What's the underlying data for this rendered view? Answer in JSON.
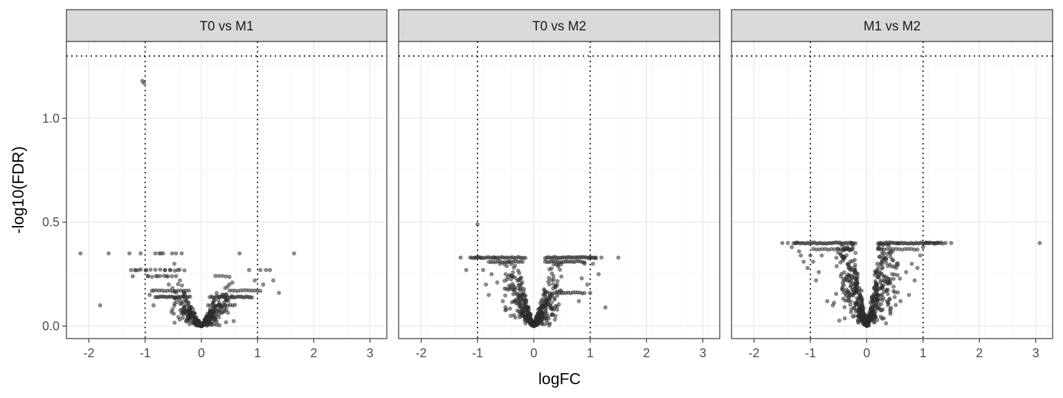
{
  "chart_data": {
    "type": "scatter",
    "xlabel": "logFC",
    "ylabel": "-log10(FDR)",
    "xlim": [
      -2.4,
      3.3
    ],
    "ylim": [
      -0.06,
      1.37
    ],
    "x_ticks": [
      -2,
      -1,
      0,
      1,
      2,
      3
    ],
    "y_ticks": [
      0.0,
      0.5,
      1.0
    ],
    "x_tick_labels": [
      "-2",
      "-1",
      "0",
      "1",
      "2",
      "3"
    ],
    "y_tick_labels": [
      "0.0",
      "0.5",
      "1.0"
    ],
    "reference_lines": {
      "vertical": [
        -1,
        1
      ],
      "horizontal": [
        1.3
      ]
    },
    "grid": true,
    "point_color": "#333333",
    "facets": [
      {
        "title": "T0 vs M1",
        "points": [
          [
            -2.15,
            0.35
          ],
          [
            -1.8,
            0.1
          ],
          [
            -1.65,
            0.35
          ],
          [
            -1.28,
            0.35
          ],
          [
            -1.22,
            0.24
          ],
          [
            -1.18,
            0.27
          ],
          [
            -1.12,
            0.27
          ],
          [
            -1.08,
            0.35
          ],
          [
            -1.05,
            1.18
          ],
          [
            -1.02,
            1.17
          ],
          [
            -0.98,
            0.27
          ],
          [
            -0.95,
            0.24
          ],
          [
            -0.92,
            0.15
          ],
          [
            -0.88,
            0.17
          ],
          [
            -0.85,
            0.1
          ],
          [
            -0.82,
            0.35
          ],
          [
            -0.78,
            0.24
          ],
          [
            -0.75,
            0.35
          ],
          [
            -0.72,
            0.35
          ],
          [
            -0.68,
            0.35
          ],
          [
            -0.65,
            0.27
          ],
          [
            -0.62,
            0.24
          ],
          [
            -0.58,
            0.2
          ],
          [
            -0.55,
            0.27
          ],
          [
            -0.52,
            0.35
          ],
          [
            -0.48,
            0.3
          ],
          [
            -0.45,
            0.35
          ],
          [
            -0.42,
            0.27
          ],
          [
            -0.38,
            0.22
          ],
          [
            -0.35,
            0.35
          ],
          [
            1.05,
            0.27
          ],
          [
            1.1,
            0.2
          ],
          [
            1.15,
            0.27
          ],
          [
            1.22,
            0.27
          ],
          [
            1.28,
            0.22
          ],
          [
            1.38,
            0.16
          ],
          [
            1.65,
            0.35
          ],
          [
            0.68,
            0.35
          ],
          [
            0.85,
            0.27
          ],
          [
            0.95,
            0.22
          ]
        ],
        "bands": [
          {
            "y": 0.27,
            "x_start": -1.25,
            "x_end": -0.3,
            "count": 12
          },
          {
            "y": 0.24,
            "x_start": -0.95,
            "x_end": -0.45,
            "count": 8
          },
          {
            "y": 0.17,
            "x_start": -0.85,
            "x_end": -0.22,
            "count": 14
          },
          {
            "y": 0.14,
            "x_start": -0.82,
            "x_end": -0.2,
            "count": 22
          },
          {
            "y": 0.14,
            "x_start": 0.15,
            "x_end": 0.9,
            "count": 26
          },
          {
            "y": 0.17,
            "x_start": 0.5,
            "x_end": 1.05,
            "count": 12
          },
          {
            "y": 0.1,
            "x_start": 0.12,
            "x_end": 0.6,
            "count": 12
          },
          {
            "y": 0.24,
            "x_start": 0.25,
            "x_end": 0.5,
            "count": 5
          }
        ],
        "funnel": {
          "count": 340,
          "spread": 0.6,
          "ymax": 0.22,
          "slope": 0.35
        }
      },
      {
        "title": "T0 vs M2",
        "points": [
          [
            -1.3,
            0.33
          ],
          [
            -1.2,
            0.27
          ],
          [
            -1.13,
            0.33
          ],
          [
            -1.03,
            0.33
          ],
          [
            -1.0,
            0.49
          ],
          [
            -0.95,
            0.33
          ],
          [
            -0.9,
            0.27
          ],
          [
            -0.85,
            0.2
          ],
          [
            -0.8,
            0.15
          ],
          [
            -0.75,
            0.25
          ],
          [
            -0.7,
            0.33
          ],
          [
            -0.65,
            0.21
          ],
          [
            -0.6,
            0.3
          ],
          [
            -0.55,
            0.12
          ],
          [
            -0.5,
            0.25
          ],
          [
            -0.45,
            0.31
          ],
          [
            1.0,
            0.33
          ],
          [
            1.05,
            0.3
          ],
          [
            1.1,
            0.33
          ],
          [
            1.15,
            0.25
          ],
          [
            1.2,
            0.33
          ],
          [
            1.27,
            0.09
          ],
          [
            1.5,
            0.33
          ],
          [
            1.0,
            0.16
          ],
          [
            0.95,
            0.2
          ],
          [
            0.9,
            0.3
          ],
          [
            0.85,
            0.23
          ],
          [
            0.8,
            0.12
          ]
        ],
        "bands": [
          {
            "y": 0.33,
            "x_start": -1.1,
            "x_end": -0.15,
            "count": 30
          },
          {
            "y": 0.31,
            "x_start": -0.8,
            "x_end": -0.2,
            "count": 16
          },
          {
            "y": 0.33,
            "x_start": 0.2,
            "x_end": 1.1,
            "count": 32
          },
          {
            "y": 0.31,
            "x_start": 0.2,
            "x_end": 0.9,
            "count": 20
          },
          {
            "y": 0.16,
            "x_start": 0.2,
            "x_end": 0.9,
            "count": 18
          }
        ],
        "funnel": {
          "count": 420,
          "spread": 0.55,
          "ymax": 0.3,
          "slope": 0.62
        }
      },
      {
        "title": "M1 vs M2",
        "points": [
          [
            -1.5,
            0.4
          ],
          [
            -1.4,
            0.4
          ],
          [
            -1.33,
            0.38
          ],
          [
            -1.25,
            0.4
          ],
          [
            -1.2,
            0.36
          ],
          [
            -1.17,
            0.34
          ],
          [
            -1.12,
            0.31
          ],
          [
            -1.05,
            0.28
          ],
          [
            -1.0,
            0.34
          ],
          [
            -0.95,
            0.31
          ],
          [
            -0.9,
            0.22
          ],
          [
            -0.85,
            0.26
          ],
          [
            -0.8,
            0.34
          ],
          [
            1.0,
            0.38
          ],
          [
            1.05,
            0.4
          ],
          [
            1.1,
            0.4
          ],
          [
            1.2,
            0.4
          ],
          [
            1.25,
            0.4
          ],
          [
            1.4,
            0.4
          ],
          [
            1.5,
            0.4
          ],
          [
            3.07,
            0.4
          ],
          [
            0.95,
            0.34
          ],
          [
            0.9,
            0.28
          ],
          [
            0.85,
            0.22
          ],
          [
            0.8,
            0.3
          ],
          [
            0.75,
            0.15
          ],
          [
            0.7,
            0.26
          ],
          [
            -0.7,
            0.12
          ],
          [
            -0.6,
            0.1
          ],
          [
            0.6,
            0.12
          ]
        ],
        "bands": [
          {
            "y": 0.4,
            "x_start": -1.3,
            "x_end": -0.2,
            "count": 36
          },
          {
            "y": 0.4,
            "x_start": 0.2,
            "x_end": 1.35,
            "count": 40
          },
          {
            "y": 0.37,
            "x_start": -0.95,
            "x_end": -0.25,
            "count": 14
          },
          {
            "y": 0.37,
            "x_start": 0.2,
            "x_end": 0.9,
            "count": 14
          }
        ],
        "funnel": {
          "count": 560,
          "spread": 0.6,
          "ymax": 0.4,
          "slope": 1.1
        }
      }
    ]
  }
}
